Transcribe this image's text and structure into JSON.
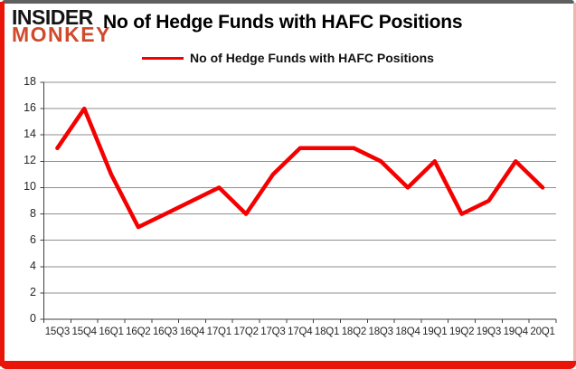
{
  "header": {
    "logo_line1": "INSIDER",
    "logo_line2": "MONKEY",
    "title": "No of Hedge Funds with HAFC Positions"
  },
  "legend": {
    "label": "No of Hedge Funds with HAFC Positions"
  },
  "colors": {
    "line": "#f40000",
    "gridline": "#8f8f8f",
    "axis": "#3f3f3f",
    "frame_red": "#ea1509",
    "frame_top": "#5f5f5f",
    "frame_right": "#f0b4ae",
    "logo_black": "#141414",
    "logo_red": "#d04a2c"
  },
  "chart_data": {
    "type": "line",
    "title": "No of Hedge Funds with HAFC Positions",
    "series": [
      {
        "name": "No of Hedge Funds with HAFC Positions",
        "values": [
          13,
          16,
          11,
          7,
          8,
          9,
          10,
          8,
          11,
          13,
          13,
          13,
          12,
          10,
          12,
          8,
          9,
          12,
          10
        ]
      }
    ],
    "categories": [
      "15Q3",
      "15Q4",
      "16Q1",
      "16Q2",
      "16Q3",
      "16Q4",
      "17Q1",
      "17Q2",
      "17Q3",
      "17Q4",
      "18Q1",
      "18Q2",
      "18Q3",
      "18Q4",
      "19Q1",
      "19Q2",
      "19Q3",
      "19Q4",
      "20Q1"
    ],
    "xlabel": "",
    "ylabel": "",
    "ylim": [
      0,
      18
    ],
    "yticks": [
      0,
      2,
      4,
      6,
      8,
      10,
      12,
      14,
      16,
      18
    ],
    "grid": true,
    "legend_position": "top-center"
  }
}
